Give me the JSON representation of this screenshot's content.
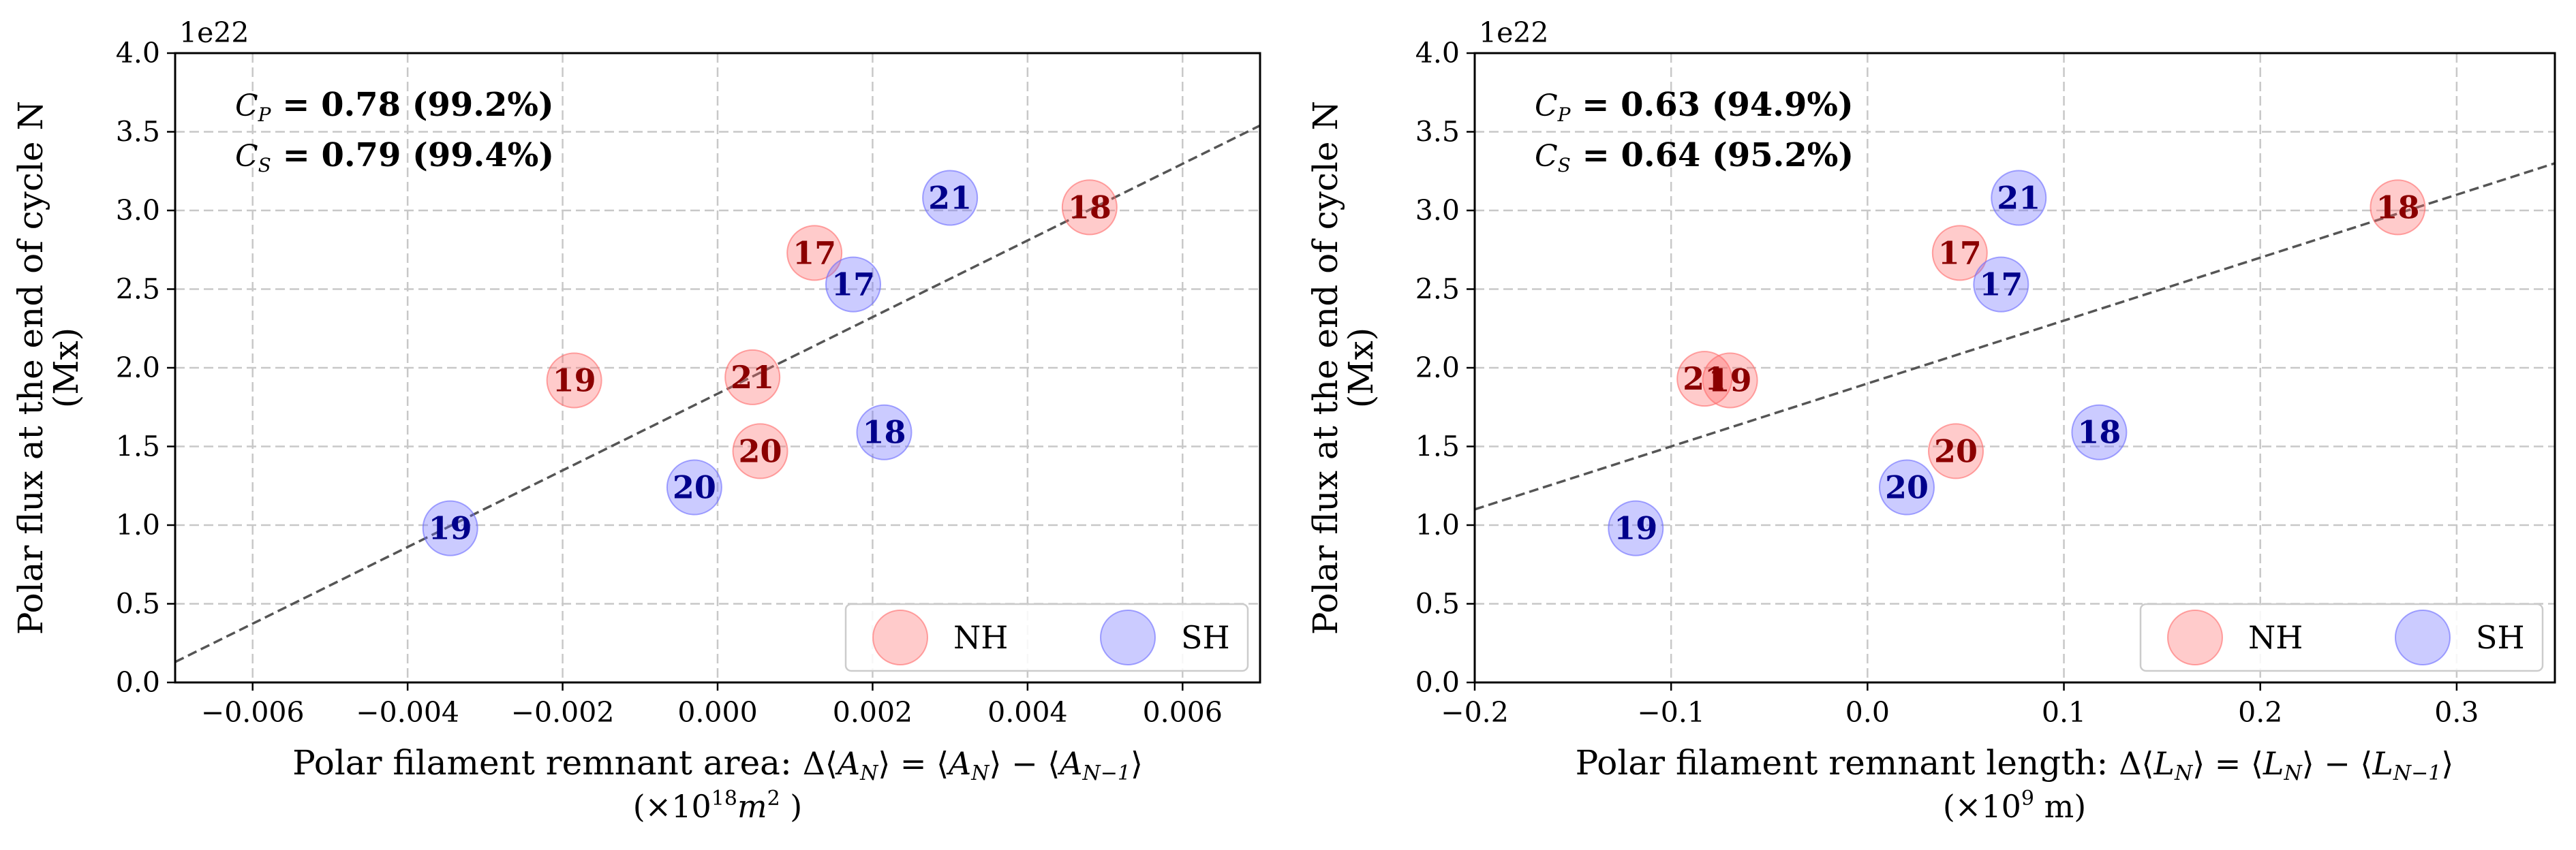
{
  "chart_data": [
    {
      "type": "scatter",
      "xlabel": "Polar filament remnant area: Δ⟨A_N⟩ = ⟨A_N⟩ − ⟨A_{N−1}⟩",
      "xlabel_parts": {
        "prefix": "Polar filament remnant area: ",
        "formula": "Δ⟨A",
        "unit_line_pre": "(×10",
        "unit_exp": "18",
        "unit_line_post": "m",
        "unit_sup": "2",
        "unit_close": " )"
      },
      "ylabel": "Polar flux at the end of cycle N",
      "ylabel_unit": "(Mx)",
      "y_offset_label": "1e22",
      "xlim": [
        -0.007,
        0.007
      ],
      "ylim": [
        0.0,
        4.0
      ],
      "xticks": [
        -0.006,
        -0.004,
        -0.002,
        0.0,
        0.002,
        0.004,
        0.006
      ],
      "xtick_labels": [
        "−0.006",
        "−0.004",
        "−0.002",
        "0.000",
        "0.002",
        "0.004",
        "0.006"
      ],
      "yticks": [
        0.0,
        0.5,
        1.0,
        1.5,
        2.0,
        2.5,
        3.0,
        3.5,
        4.0
      ],
      "ytick_labels": [
        "0.0",
        "0.5",
        "1.0",
        "1.5",
        "2.0",
        "2.5",
        "3.0",
        "3.5",
        "4.0"
      ],
      "grid": true,
      "legend_position": "lower-right",
      "correlations": [
        {
          "symbol": "C",
          "sub": "P",
          "value": " = 0.78 (99.2%)"
        },
        {
          "symbol": "C",
          "sub": "S",
          "value": " = 0.79 (99.4%)"
        }
      ],
      "fit_line": {
        "points": [
          [
            -0.007,
            0.13
          ],
          [
            0.007,
            3.54
          ]
        ]
      },
      "series": [
        {
          "name": "NH",
          "color": "#ff6b6b",
          "label_color": "#8b0000",
          "points": [
            {
              "label": "17",
              "x": 0.00125,
              "y": 2.73
            },
            {
              "label": "18",
              "x": 0.0048,
              "y": 3.02
            },
            {
              "label": "19",
              "x": -0.00185,
              "y": 1.92
            },
            {
              "label": "20",
              "x": 0.00055,
              "y": 1.47
            },
            {
              "label": "21",
              "x": 0.00045,
              "y": 1.94
            }
          ]
        },
        {
          "name": "SH",
          "color": "#6b6bff",
          "label_color": "#00008b",
          "points": [
            {
              "label": "17",
              "x": 0.00175,
              "y": 2.53
            },
            {
              "label": "18",
              "x": 0.00215,
              "y": 1.59
            },
            {
              "label": "19",
              "x": -0.00345,
              "y": 0.98
            },
            {
              "label": "20",
              "x": -0.0003,
              "y": 1.24
            },
            {
              "label": "21",
              "x": 0.003,
              "y": 3.08
            }
          ]
        }
      ]
    },
    {
      "type": "scatter",
      "xlabel": "Polar filament remnant length: Δ⟨L_N⟩ = ⟨L_N⟩ − ⟨L_{N−1}⟩",
      "xlabel_parts": {
        "prefix": "Polar filament remnant length: ",
        "formula": "Δ⟨L",
        "unit_line_pre": "(×10",
        "unit_exp": "9",
        "unit_line_post": " m)",
        "unit_sup": "",
        "unit_close": ""
      },
      "ylabel": "Polar flux at the end of cycle N",
      "ylabel_unit": "(Mx)",
      "y_offset_label": "1e22",
      "xlim": [
        -0.2,
        0.35
      ],
      "ylim": [
        0.0,
        4.0
      ],
      "xticks": [
        -0.2,
        -0.1,
        0.0,
        0.1,
        0.2,
        0.3
      ],
      "xtick_labels": [
        "−0.2",
        "−0.1",
        "0.0",
        "0.1",
        "0.2",
        "0.3"
      ],
      "yticks": [
        0.0,
        0.5,
        1.0,
        1.5,
        2.0,
        2.5,
        3.0,
        3.5,
        4.0
      ],
      "ytick_labels": [
        "0.0",
        "0.5",
        "1.0",
        "1.5",
        "2.0",
        "2.5",
        "3.0",
        "3.5",
        "4.0"
      ],
      "grid": true,
      "legend_position": "lower-right",
      "correlations": [
        {
          "symbol": "C",
          "sub": "P",
          "value": " = 0.63 (94.9%)"
        },
        {
          "symbol": "C",
          "sub": "S",
          "value": " = 0.64 (95.2%)"
        }
      ],
      "fit_line": {
        "points": [
          [
            -0.2,
            1.1
          ],
          [
            0.35,
            3.3
          ]
        ]
      },
      "series": [
        {
          "name": "NH",
          "color": "#ff6b6b",
          "label_color": "#8b0000",
          "points": [
            {
              "label": "17",
              "x": 0.047,
              "y": 2.73
            },
            {
              "label": "18",
              "x": 0.27,
              "y": 3.02
            },
            {
              "label": "19",
              "x": -0.07,
              "y": 1.92
            },
            {
              "label": "20",
              "x": 0.045,
              "y": 1.47
            },
            {
              "label": "21",
              "x": -0.083,
              "y": 1.93
            }
          ]
        },
        {
          "name": "SH",
          "color": "#6b6bff",
          "label_color": "#00008b",
          "points": [
            {
              "label": "17",
              "x": 0.068,
              "y": 2.53
            },
            {
              "label": "18",
              "x": 0.118,
              "y": 1.59
            },
            {
              "label": "19",
              "x": -0.118,
              "y": 0.98
            },
            {
              "label": "20",
              "x": 0.02,
              "y": 1.24
            },
            {
              "label": "21",
              "x": 0.077,
              "y": 3.08
            }
          ]
        }
      ]
    }
  ]
}
